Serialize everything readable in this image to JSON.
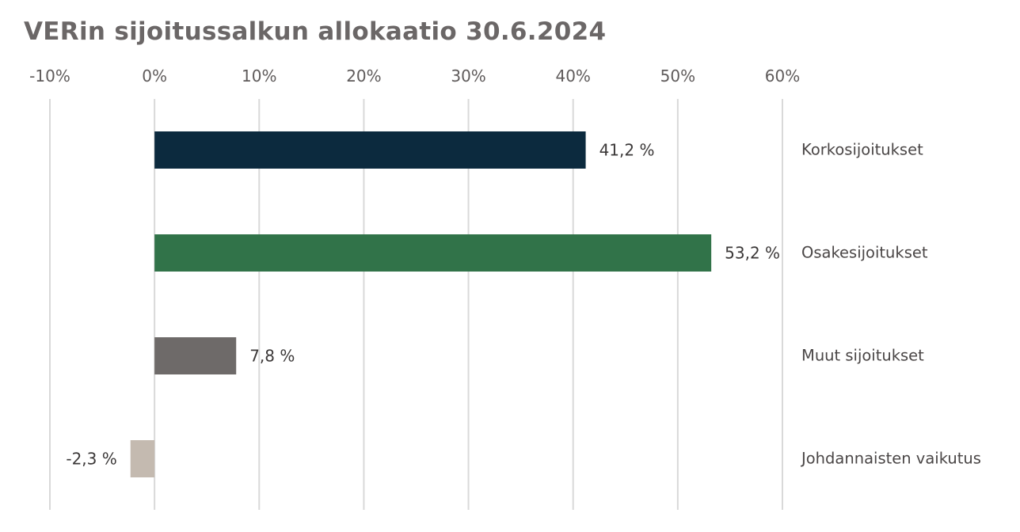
{
  "chart_data": {
    "type": "bar",
    "orientation": "horizontal",
    "title": "VERin sijoitussalkun allokaatio 30.6.2024",
    "categories": [
      "Korkosijoitukset",
      "Osakesijoitukset",
      "Muut sijoitukset",
      "Johdannaisten vaikutus"
    ],
    "values": [
      41.2,
      53.2,
      7.8,
      -2.3
    ],
    "value_labels": [
      "41,2 %",
      "53,2 %",
      "7,8 %",
      "-2,3 %"
    ],
    "colors": [
      "#0c2a3e",
      "#317349",
      "#6e6a69",
      "#c4bab0"
    ],
    "xlim": [
      -10,
      60
    ],
    "xticks": [
      -10,
      0,
      10,
      20,
      30,
      40,
      50,
      60
    ],
    "xtick_labels": [
      "-10%",
      "0%",
      "10%",
      "20%",
      "30%",
      "40%",
      "50%",
      "60%"
    ],
    "xaxis_position": "top",
    "grid": true,
    "legend": "none",
    "xlabel": "",
    "ylabel": ""
  }
}
